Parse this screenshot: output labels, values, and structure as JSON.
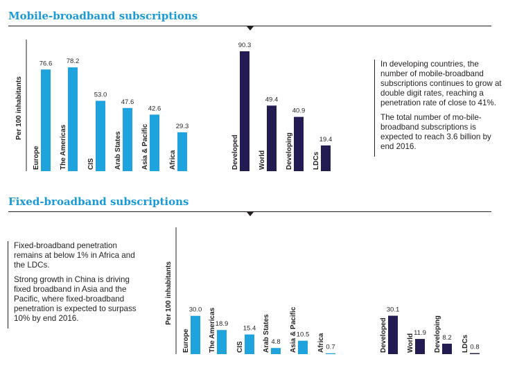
{
  "sections": {
    "mobile_title": "Mobile-broadband subscriptions",
    "fixed_title": "Fixed-broadband subscriptions"
  },
  "notes": {
    "mobile": [
      "In developing countries, the number of mobile-broadband subscriptions continues to grow at double digit rates, reaching a penetration rate of close to 41%.",
      "The total number of mo-bile-broadband subscriptions is expected to reach 3.6 billion by end 2016."
    ],
    "fixed": [
      "Fixed-broadband penetration remains at below 1% in Africa and the LDCs.",
      "Strong growth in China is driving fixed broadband in Asia and the Pacific, where fixed-broadband penetration is expected to surpass 10% by end 2016."
    ]
  },
  "colors": {
    "regions": "#1fa3dd",
    "groups": "#231c52",
    "title": "#1a9ad6"
  },
  "chart_data": [
    {
      "type": "bar",
      "title": "Mobile-broadband subscriptions",
      "ylabel": "Per 100 inhabitants",
      "ylim": [
        0,
        95
      ],
      "grid": false,
      "categories": [
        "Europe",
        "The Americas",
        "CIS",
        "Arab States",
        "Asia & Pacific",
        "Africa",
        "Developed",
        "World",
        "Developing",
        "LDCs"
      ],
      "values": [
        76.6,
        78.2,
        53.0,
        47.6,
        42.6,
        29.3,
        90.3,
        49.4,
        40.9,
        19.4
      ],
      "value_labels": [
        "76.6",
        "78.2",
        "53.0",
        "47.6",
        "42.6",
        "29.3",
        "90.3",
        "49.4",
        "40.9",
        "19.4"
      ],
      "groups": [
        "regions",
        "regions",
        "regions",
        "regions",
        "regions",
        "regions",
        "groups",
        "groups",
        "groups",
        "groups"
      ]
    },
    {
      "type": "bar",
      "title": "Fixed-broadband subscriptions",
      "ylabel": "Per 100 inhabitants",
      "ylim": [
        0,
        95
      ],
      "grid": false,
      "categories": [
        "Europe",
        "The Americas",
        "CIS",
        "Arab States",
        "Asia & Pacific",
        "Africa",
        "Developed",
        "World",
        "Developing",
        "LDCs"
      ],
      "values": [
        30.0,
        18.9,
        15.4,
        4.8,
        10.5,
        0.7,
        30.1,
        11.9,
        8.2,
        0.8
      ],
      "value_labels": [
        "30.0",
        "18.9",
        "15.4",
        "4.8",
        "10.5",
        "0.7",
        "30.1",
        "11.9",
        "8.2",
        "0.8"
      ],
      "groups": [
        "regions",
        "regions",
        "regions",
        "regions",
        "regions",
        "regions",
        "groups",
        "groups",
        "groups",
        "groups"
      ]
    }
  ]
}
